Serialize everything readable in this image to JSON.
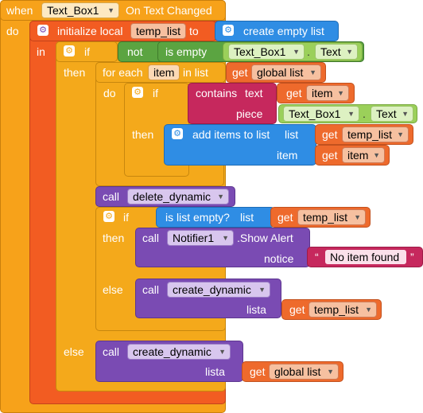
{
  "event": {
    "when": "when",
    "component": "Text_Box1",
    "event_name": "On Text Changed",
    "do": "do"
  },
  "local": {
    "label": "initialize local",
    "var": "temp_list",
    "to": "to",
    "in": "in",
    "value_block": "create empty list"
  },
  "if_outer": {
    "if": "if",
    "not": "not",
    "is_empty": "is empty",
    "component": "Text_Box1",
    "dot": ".",
    "prop": "Text",
    "then": "then",
    "else": "else"
  },
  "foreach": {
    "label": "for each",
    "var": "item",
    "in_list": "in list",
    "get": "get",
    "list_var": "global list",
    "do": "do"
  },
  "if_inner": {
    "if": "if",
    "contains": "contains",
    "text_slot": "text",
    "piece_slot": "piece",
    "get": "get",
    "var": "item",
    "component": "Text_Box1",
    "dot": ".",
    "prop": "Text",
    "then": "then"
  },
  "add_items": {
    "label": "add items to list",
    "list_slot": "list",
    "item_slot": "item",
    "get": "get",
    "list_var": "temp_list",
    "item_var": "item"
  },
  "call_delete": {
    "call": "call",
    "proc": "delete_dynamic"
  },
  "if_empty": {
    "if": "if",
    "is_list_empty": "is list empty?",
    "list_slot": "list",
    "get": "get",
    "var": "temp_list",
    "then": "then",
    "else": "else"
  },
  "notifier": {
    "call": "call",
    "component": "Notifier1",
    "method": ".Show Alert",
    "notice_slot": "notice",
    "open_quote": "“",
    "text": "No item found",
    "close_quote": "”"
  },
  "call_create_1": {
    "call": "call",
    "proc": "create_dynamic",
    "arg": "lista",
    "get": "get",
    "var": "temp_list"
  },
  "call_create_2": {
    "call": "call",
    "proc": "create_dynamic",
    "arg": "lista",
    "get": "get",
    "var": "global list"
  },
  "colors": {
    "event": "#f7a21a",
    "local": "#f25c22",
    "control": "#f4a91b",
    "logic": "#5ba441",
    "list": "#2f8de4",
    "variable": "#ee6a2c",
    "procedure": "#7a4bb3",
    "text": "#c6285d",
    "component": "#9bd05a"
  }
}
